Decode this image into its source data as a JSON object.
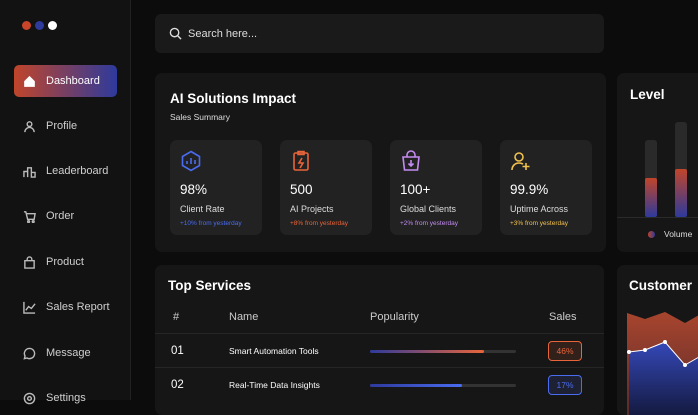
{
  "sidebar": {
    "items": [
      "Dashboard",
      "Profile",
      "Leaderboard",
      "Order",
      "Product",
      "Sales Report",
      "Message",
      "Settings"
    ]
  },
  "search": {
    "placeholder": "Search here..."
  },
  "impact": {
    "title": "AI Solutions Impact",
    "subtitle": "Sales Summary",
    "stats": [
      {
        "value": "98%",
        "label": "Client Rate",
        "change": "+10% from yesterday",
        "color": "#4a6cf0"
      },
      {
        "value": "500",
        "label": "AI Projects",
        "change": "+8% from yesterday",
        "color": "#e8643a"
      },
      {
        "value": "100+",
        "label": "Global Clients",
        "change": "+2% from yesterday",
        "color": "#c48bf2"
      },
      {
        "value": "99.9%",
        "label": "Uptime Across",
        "change": "+3% from yesterday",
        "color": "#f2c14e"
      }
    ]
  },
  "level": {
    "title": "Level",
    "legend": "Volume"
  },
  "services": {
    "title": "Top Services",
    "columns": [
      "#",
      "Name",
      "Popularity",
      "Sales"
    ],
    "rows": [
      {
        "rank": "01",
        "name": "Smart Automation Tools",
        "popularity": 78,
        "sales": "46%",
        "color": "#e8643a"
      },
      {
        "rank": "02",
        "name": "Real-Time Data Insights",
        "popularity": 63,
        "sales": "17%",
        "color": "#4a6cf0"
      }
    ]
  },
  "customer": {
    "title": "Customer"
  }
}
